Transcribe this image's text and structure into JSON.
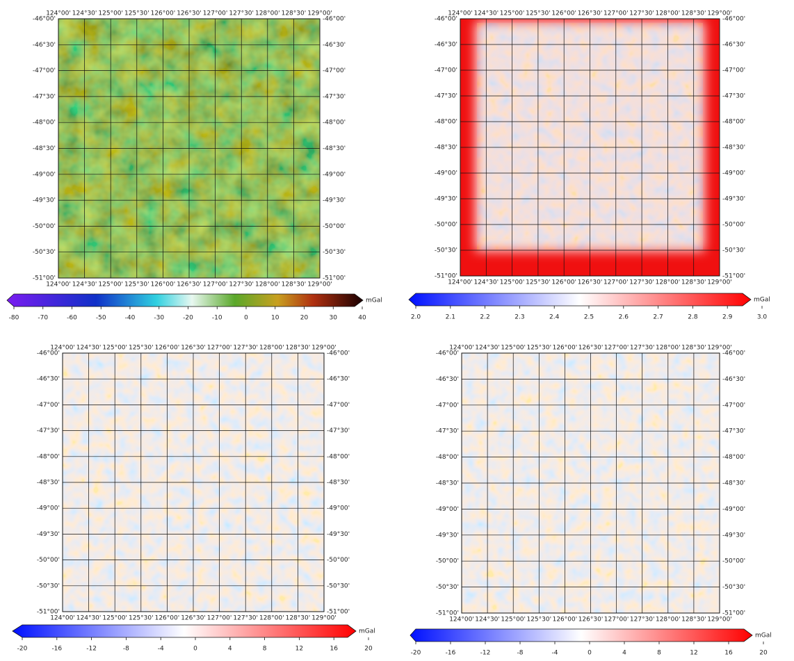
{
  "lon_labels": [
    "124°00'",
    "124°30'",
    "125°00'",
    "125°30'",
    "126°00'",
    "126°30'",
    "127°00'",
    "127°30'",
    "128°00'",
    "128°30'",
    "129°00'"
  ],
  "lat_labels": [
    "-46°00'",
    "-46°30'",
    "-47°00'",
    "-47°30'",
    "-48°00'",
    "-48°30'",
    "-49°00'",
    "-49°30'",
    "-50°00'",
    "-50°30'",
    "-51°00'"
  ],
  "panels": [
    {
      "colorbar": {
        "unit": "mGal",
        "lim": [
          -80,
          40
        ],
        "ticks": [
          -80,
          -70,
          -60,
          -50,
          -40,
          -30,
          -20,
          -10,
          0,
          10,
          20,
          30,
          40
        ]
      }
    },
    {
      "colorbar": {
        "unit": "mGal",
        "lim": [
          2,
          3
        ],
        "ticks": [
          {
            "value": 2,
            "label": "2.0"
          },
          2.1,
          2.2,
          2.3,
          2.4,
          2.5,
          2.6,
          2.7,
          2.8,
          2.9,
          {
            "value": 3,
            "label": "3.0"
          }
        ]
      }
    },
    {
      "colorbar": {
        "unit": "mGal",
        "lim": [
          -20,
          20
        ],
        "ticks": [
          -20,
          -16,
          -12,
          -8,
          -4,
          0,
          4,
          8,
          12,
          16,
          20
        ]
      }
    },
    {
      "colorbar": {
        "unit": "mGal",
        "lim": [
          -20,
          20
        ],
        "ticks": [
          -20,
          -16,
          -12,
          -8,
          -4,
          0,
          4,
          8,
          12,
          16,
          20
        ]
      }
    }
  ]
}
